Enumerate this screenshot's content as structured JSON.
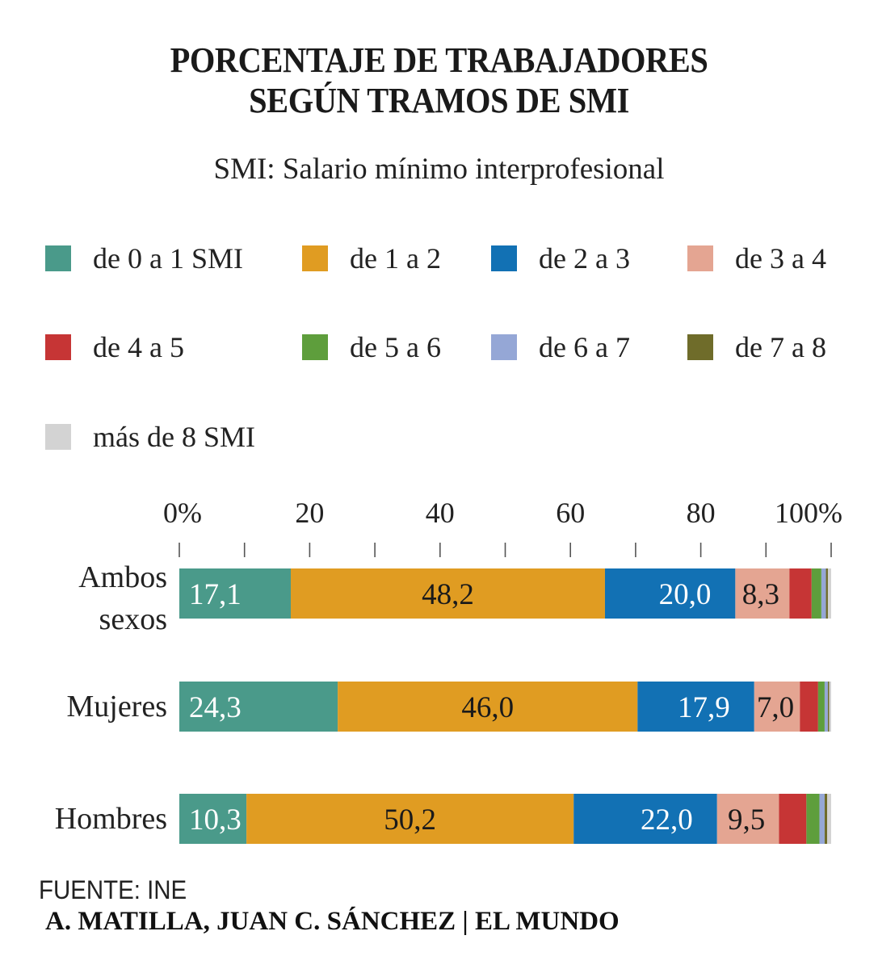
{
  "title_line1": "PORCENTAJE DE TRABAJADORES",
  "title_line2": "SEGÚN TRAMOS DE SMI",
  "subtitle": "SMI: Salario mínimo interprofesional",
  "source": "FUENTE: INE",
  "credit": "A. MATILLA, JUAN C. SÁNCHEZ | EL MUNDO",
  "legend": [
    {
      "label": "de 0 a 1 SMI",
      "color": "#4a9a8a"
    },
    {
      "label": "de 1 a 2",
      "color": "#e09c22"
    },
    {
      "label": "de 2 a 3",
      "color": "#1271b4"
    },
    {
      "label": "de 3 a 4",
      "color": "#e4a592"
    },
    {
      "label": "de 4 a 5",
      "color": "#c63535"
    },
    {
      "label": "de 5 a 6",
      "color": "#5e9e3c"
    },
    {
      "label": "de 6 a 7",
      "color": "#95a7d6"
    },
    {
      "label": "de 7 a 8",
      "color": "#6f6c2a"
    },
    {
      "label": "más de 8 SMI",
      "color": "#d3d3d3"
    }
  ],
  "chart_data": {
    "type": "bar",
    "orientation": "horizontal",
    "stacked": true,
    "xlim": [
      0,
      100
    ],
    "xticks": [
      0,
      10,
      20,
      30,
      40,
      50,
      60,
      70,
      80,
      90,
      100
    ],
    "xtick_labels": [
      "0%",
      "20",
      "40",
      "60",
      "80",
      "100%"
    ],
    "xtick_label_values": [
      0,
      20,
      40,
      60,
      80,
      100
    ],
    "categories": [
      {
        "lines": [
          "Ambos",
          "sexos"
        ]
      },
      {
        "lines": [
          "Mujeres"
        ]
      },
      {
        "lines": [
          "Hombres"
        ]
      }
    ],
    "series": [
      {
        "name": "de 0 a 1 SMI",
        "values": [
          17.1,
          24.3,
          10.3
        ],
        "labels": [
          "17,1",
          "24,3",
          "10,3"
        ],
        "label_color": "#ffffff"
      },
      {
        "name": "de 1 a 2",
        "values": [
          48.2,
          46.0,
          50.2
        ],
        "labels": [
          "48,2",
          "46,0",
          "50,2"
        ],
        "label_color": "#1a1a1a"
      },
      {
        "name": "de 2 a 3",
        "values": [
          20.0,
          17.9,
          22.0
        ],
        "labels": [
          "20,0",
          "17,9",
          "22,0"
        ],
        "label_color": "#ffffff"
      },
      {
        "name": "de 3 a 4",
        "values": [
          8.3,
          7.0,
          9.5
        ],
        "labels": [
          "8,3",
          "7,0",
          "9,5"
        ],
        "label_color": "#1a1a1a"
      },
      {
        "name": "de 4 a 5",
        "values": [
          3.4,
          2.8,
          4.2
        ]
      },
      {
        "name": "de 5 a 6",
        "values": [
          1.5,
          1.0,
          2.0
        ]
      },
      {
        "name": "de 6 a 7",
        "values": [
          0.7,
          0.5,
          0.8
        ]
      },
      {
        "name": "de 7 a 8",
        "values": [
          0.3,
          0.2,
          0.4
        ]
      },
      {
        "name": "más de 8 SMI",
        "values": [
          0.5,
          0.3,
          0.6
        ]
      }
    ]
  }
}
